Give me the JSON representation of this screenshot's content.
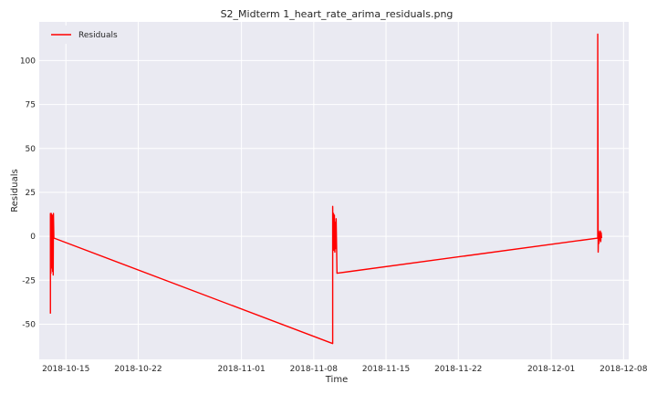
{
  "chart_data": {
    "type": "line",
    "title": "S2_Midterm 1_heart_rate_arima_residuals.png",
    "xlabel": "Time",
    "ylabel": "Residuals",
    "x_ticks": [
      "2018-10-15",
      "2018-10-22",
      "2018-11-01",
      "2018-11-08",
      "2018-11-15",
      "2018-11-22",
      "2018-12-01",
      "2018-12-08"
    ],
    "y_ticks": [
      -50,
      -25,
      0,
      25,
      50,
      75,
      100
    ],
    "ylim": [
      -70,
      122
    ],
    "xlim": [
      "2018-10-12T10:00",
      "2018-12-08T12:00"
    ],
    "grid": true,
    "legend_position": "top-left",
    "background": "#eaeaf2",
    "series": [
      {
        "name": "Residuals",
        "color": "#ff0000",
        "points": [
          [
            "2018-10-13T12:00",
            -44
          ],
          [
            "2018-10-13T12:00",
            13
          ],
          [
            "2018-10-13T13:00",
            -21
          ],
          [
            "2018-10-13T14:00",
            13
          ],
          [
            "2018-10-13T15:00",
            -18
          ],
          [
            "2018-10-13T16:00",
            12
          ],
          [
            "2018-10-13T17:00",
            -20
          ],
          [
            "2018-10-13T18:00",
            12
          ],
          [
            "2018-10-13T18:30",
            -22
          ],
          [
            "2018-10-13T19:00",
            13
          ],
          [
            "2018-10-13T20:00",
            -1
          ],
          [
            "2018-11-09T20:00",
            -61
          ],
          [
            "2018-11-09T20:00",
            17
          ],
          [
            "2018-11-09T21:00",
            -6
          ],
          [
            "2018-11-09T22:00",
            13
          ],
          [
            "2018-11-09T23:00",
            -8
          ],
          [
            "2018-11-10T00:00",
            12
          ],
          [
            "2018-11-10T01:00",
            -9
          ],
          [
            "2018-11-10T02:00",
            8
          ],
          [
            "2018-11-10T03:00",
            -7
          ],
          [
            "2018-11-10T04:00",
            10
          ],
          [
            "2018-11-10T05:00",
            -5
          ],
          [
            "2018-11-10T06:00",
            -21
          ],
          [
            "2018-12-05T12:00",
            -1
          ],
          [
            "2018-12-05T12:00",
            115
          ],
          [
            "2018-12-05T13:00",
            -9
          ],
          [
            "2018-12-05T14:00",
            3
          ],
          [
            "2018-12-05T15:00",
            -4
          ],
          [
            "2018-12-05T16:00",
            2
          ],
          [
            "2018-12-05T17:00",
            -2
          ],
          [
            "2018-12-05T18:00",
            3
          ],
          [
            "2018-12-05T19:00",
            -3
          ],
          [
            "2018-12-05T20:00",
            2
          ],
          [
            "2018-12-05T21:00",
            -1
          ]
        ]
      }
    ]
  }
}
